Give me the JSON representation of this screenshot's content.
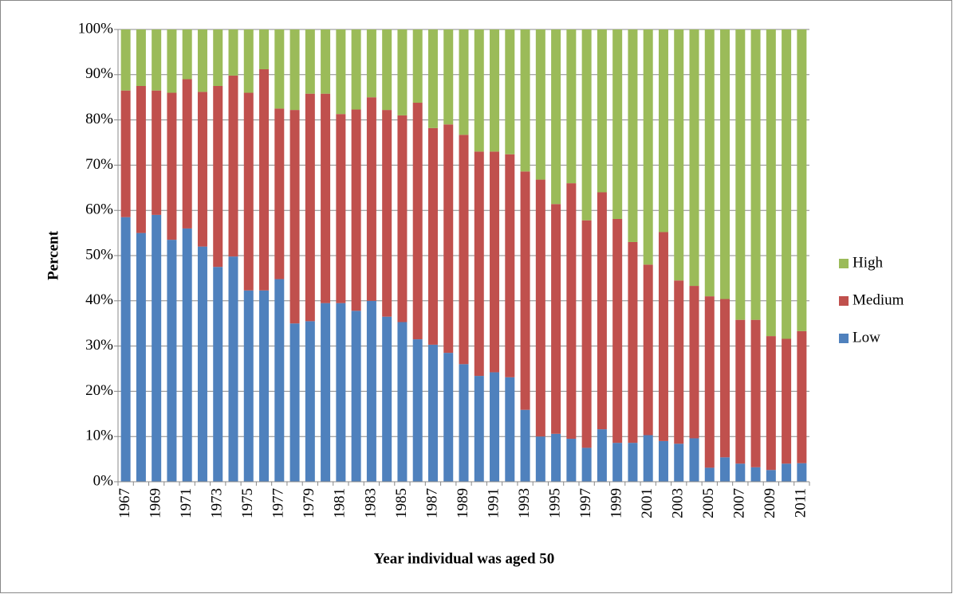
{
  "chart_data": {
    "type": "stacked_bar",
    "categories": [
      "1967",
      null,
      "1969",
      null,
      "1971",
      null,
      "1973",
      null,
      "1975",
      null,
      "1977",
      null,
      "1979",
      null,
      "1981",
      null,
      "1983",
      null,
      "1985",
      null,
      "1987",
      null,
      "1989",
      null,
      "1991",
      null,
      "1993",
      null,
      "1995",
      null,
      "1997",
      null,
      "1999",
      null,
      "2001",
      null,
      "2003",
      null,
      "2005",
      null,
      "2007",
      null,
      "2009",
      null,
      "2011"
    ],
    "series": [
      {
        "name": "Low",
        "color": "#4f81bd",
        "values": [
          58.5,
          55,
          59,
          53.5,
          56,
          52,
          47.5,
          49.8,
          42.3,
          42.3,
          44.8,
          35,
          35.5,
          39.5,
          39.5,
          37.8,
          40,
          36.5,
          35.3,
          31.5,
          30.3,
          28.5,
          26,
          23.4,
          24.2,
          23.1,
          15.9,
          10,
          10.6,
          9.5,
          7.5,
          11.6,
          8.6,
          8.6,
          10.3,
          9,
          8.4,
          9.6,
          3.1,
          5.4,
          4,
          3.2,
          2.6,
          4,
          4.1
        ]
      },
      {
        "name": "Medium",
        "color": "#c0504d",
        "values": [
          28,
          32.5,
          27.5,
          32.5,
          33,
          34.2,
          40,
          40,
          43.7,
          48.9,
          37.7,
          47.2,
          50.3,
          46.3,
          41.8,
          44.5,
          45,
          45.7,
          45.7,
          52.3,
          47.9,
          50.5,
          50.7,
          49.6,
          48.8,
          49.3,
          52.7,
          56.8,
          50.8,
          56.5,
          50.3,
          52.4,
          49.5,
          44.4,
          37.7,
          46.2,
          36.1,
          33.7,
          37.9,
          35,
          31.8,
          32.6,
          29.6,
          27.6,
          29.2
        ]
      },
      {
        "name": "High",
        "color": "#9bbb59",
        "values": [
          13.5,
          12.5,
          13.5,
          14,
          11,
          13.8,
          12.5,
          10.2,
          14,
          8.8,
          17.5,
          17.8,
          14.2,
          14.2,
          18.7,
          17.7,
          15,
          17.8,
          19,
          16.2,
          21.8,
          21,
          23.3,
          27,
          27,
          27.6,
          31.4,
          33.2,
          38.6,
          34,
          42.2,
          36,
          41.9,
          47,
          52,
          44.8,
          55.5,
          56.7,
          59,
          59.6,
          64.2,
          64.2,
          67.8,
          68.4,
          66.7
        ]
      }
    ],
    "ylim": [
      0,
      100
    ],
    "yticks": [
      {
        "value": 0,
        "label": "0%"
      },
      {
        "value": 10,
        "label": "10%"
      },
      {
        "value": 20,
        "label": "20%"
      },
      {
        "value": 30,
        "label": "30%"
      },
      {
        "value": 40,
        "label": "40%"
      },
      {
        "value": 50,
        "label": "50%"
      },
      {
        "value": 60,
        "label": "60%"
      },
      {
        "value": 70,
        "label": "70%"
      },
      {
        "value": 80,
        "label": "80%"
      },
      {
        "value": 90,
        "label": "90%"
      },
      {
        "value": 100,
        "label": "100%"
      }
    ],
    "grid": true,
    "legend": "right",
    "x_label": "Year individual was aged 50",
    "y_label": "Percent"
  }
}
